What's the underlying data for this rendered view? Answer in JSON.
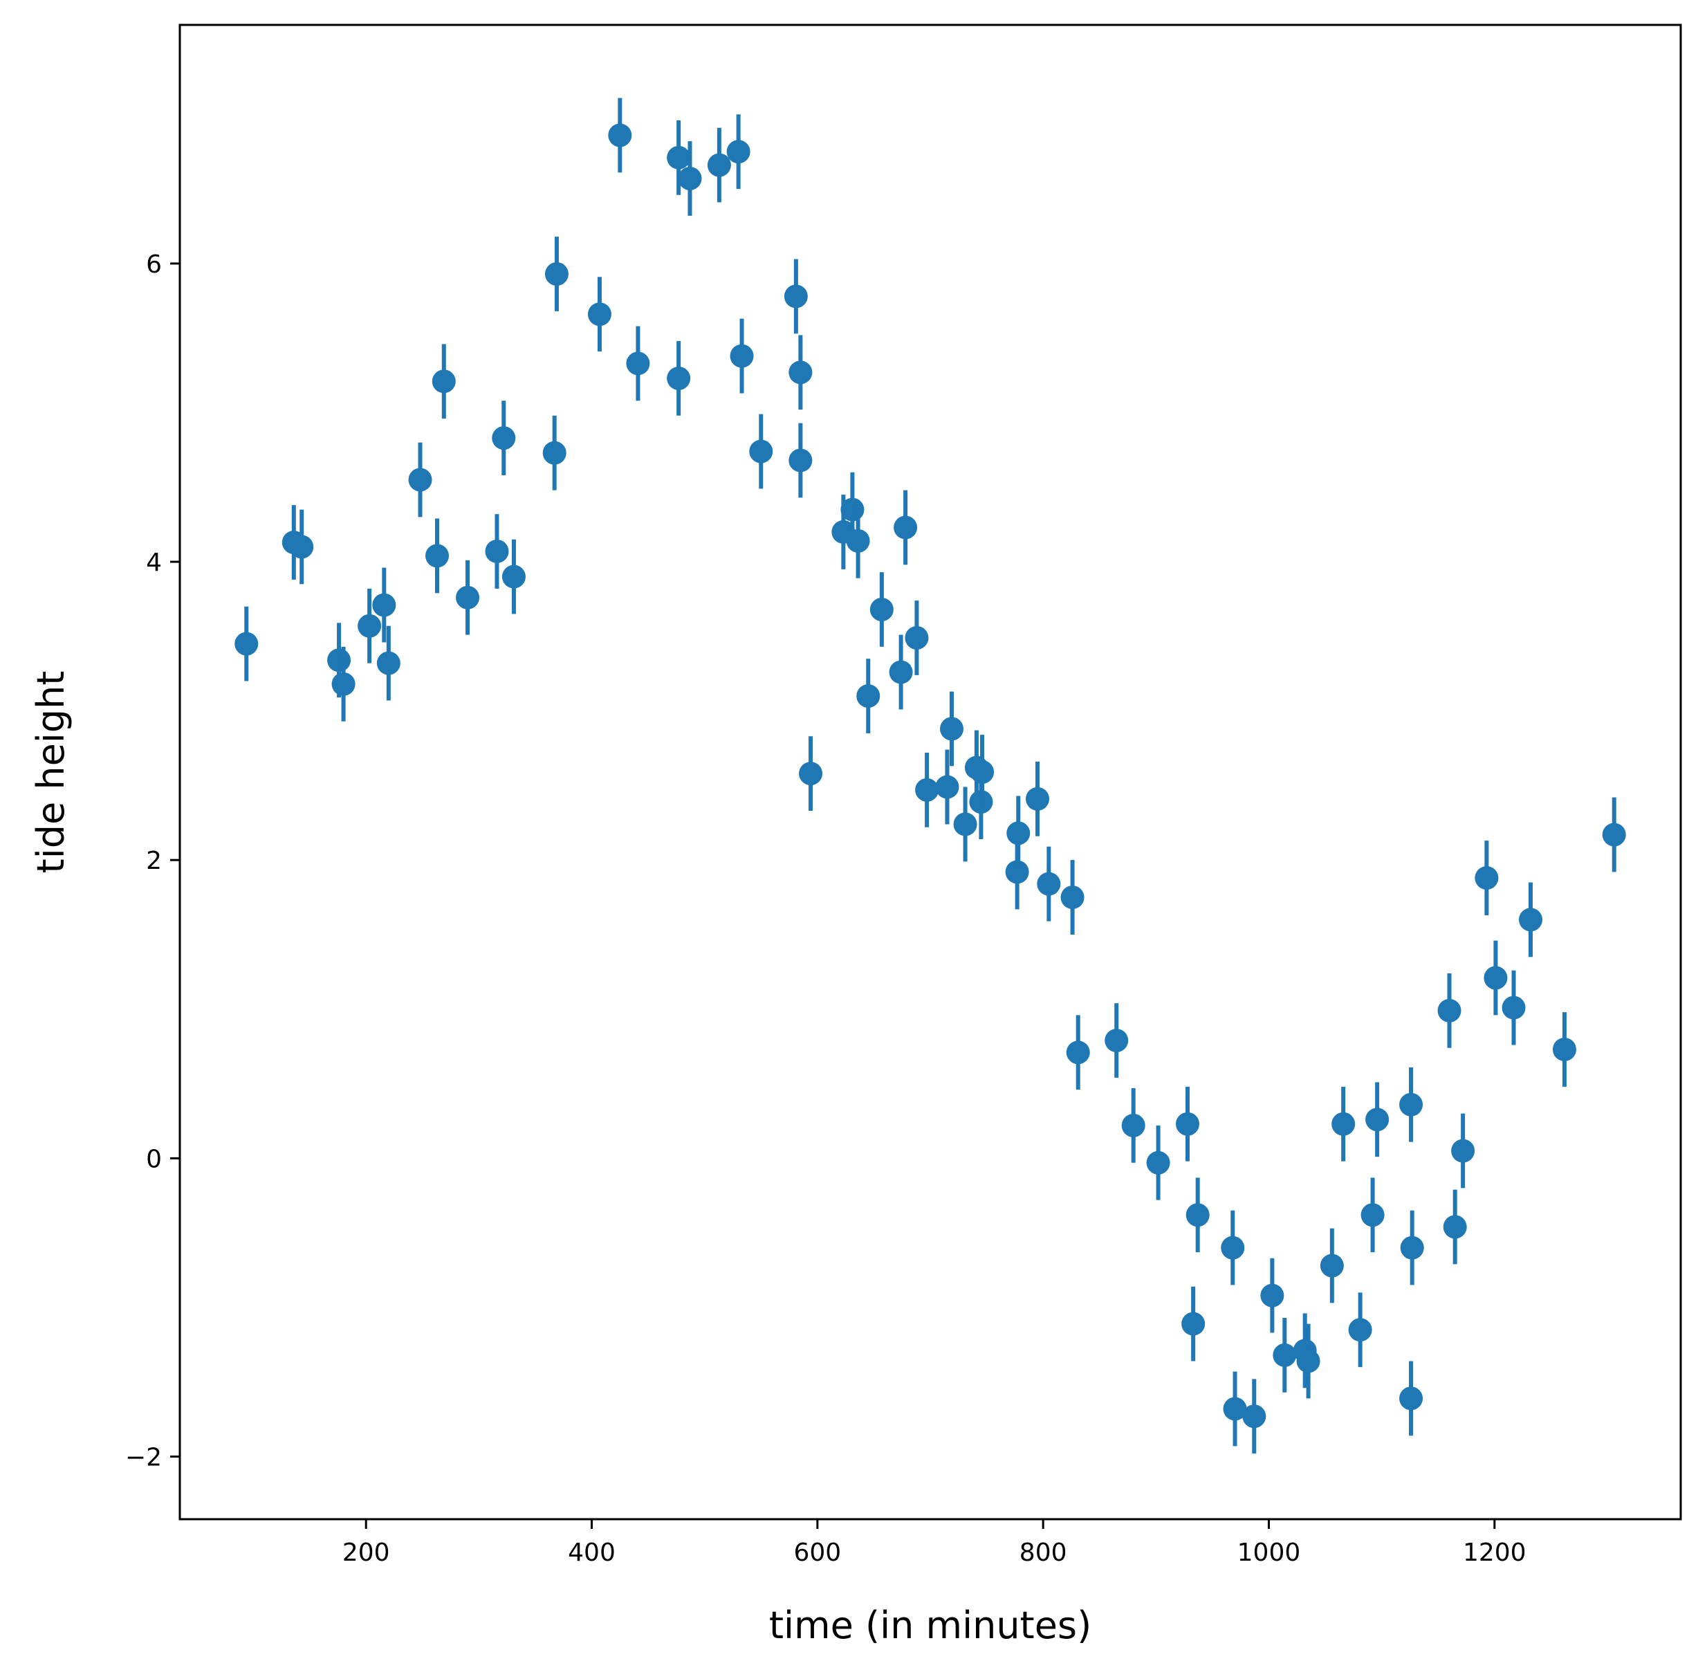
{
  "chart_data": {
    "type": "scatter",
    "title": "",
    "xlabel": "time (in minutes)",
    "ylabel": "tide height",
    "xlim": [
      35,
      1365
    ],
    "ylim": [
      -2.42,
      7.6
    ],
    "x_ticks": [
      200,
      400,
      600,
      800,
      1000,
      1200
    ],
    "y_ticks": [
      -2,
      0,
      2,
      4,
      6
    ],
    "y_tick_labels": [
      "−2",
      "0",
      "2",
      "4",
      "6"
    ],
    "grid": false,
    "legend": "none",
    "marker_color": "#1f77b4",
    "error_bar": 0.25,
    "points": [
      {
        "x": 94,
        "y": 3.45
      },
      {
        "x": 136,
        "y": 4.13
      },
      {
        "x": 143,
        "y": 4.1
      },
      {
        "x": 176,
        "y": 3.34
      },
      {
        "x": 180,
        "y": 3.18
      },
      {
        "x": 203,
        "y": 3.57
      },
      {
        "x": 216,
        "y": 3.71
      },
      {
        "x": 220,
        "y": 3.32
      },
      {
        "x": 248,
        "y": 4.55
      },
      {
        "x": 263,
        "y": 4.04
      },
      {
        "x": 269,
        "y": 5.21
      },
      {
        "x": 290,
        "y": 3.76
      },
      {
        "x": 316,
        "y": 4.07
      },
      {
        "x": 322,
        "y": 4.83
      },
      {
        "x": 331,
        "y": 3.9
      },
      {
        "x": 367,
        "y": 4.73
      },
      {
        "x": 369,
        "y": 5.93
      },
      {
        "x": 407,
        "y": 5.66
      },
      {
        "x": 425,
        "y": 6.86
      },
      {
        "x": 441,
        "y": 5.33
      },
      {
        "x": 477,
        "y": 5.23
      },
      {
        "x": 477,
        "y": 6.71
      },
      {
        "x": 487,
        "y": 6.57
      },
      {
        "x": 513,
        "y": 6.66
      },
      {
        "x": 530,
        "y": 6.75
      },
      {
        "x": 533,
        "y": 5.38
      },
      {
        "x": 550,
        "y": 4.74
      },
      {
        "x": 581,
        "y": 5.78
      },
      {
        "x": 585,
        "y": 5.27
      },
      {
        "x": 585,
        "y": 4.68
      },
      {
        "x": 594,
        "y": 2.58
      },
      {
        "x": 623,
        "y": 4.2
      },
      {
        "x": 631,
        "y": 4.35
      },
      {
        "x": 636,
        "y": 4.14
      },
      {
        "x": 645,
        "y": 3.1
      },
      {
        "x": 657,
        "y": 3.68
      },
      {
        "x": 674,
        "y": 3.26
      },
      {
        "x": 678,
        "y": 4.23
      },
      {
        "x": 688,
        "y": 3.49
      },
      {
        "x": 697,
        "y": 2.47
      },
      {
        "x": 715,
        "y": 2.49
      },
      {
        "x": 719,
        "y": 2.88
      },
      {
        "x": 731,
        "y": 2.24
      },
      {
        "x": 741,
        "y": 2.62
      },
      {
        "x": 745,
        "y": 2.39
      },
      {
        "x": 746,
        "y": 2.59
      },
      {
        "x": 777,
        "y": 1.92
      },
      {
        "x": 778,
        "y": 2.18
      },
      {
        "x": 795,
        "y": 2.41
      },
      {
        "x": 805,
        "y": 1.84
      },
      {
        "x": 826,
        "y": 1.75
      },
      {
        "x": 831,
        "y": 0.71
      },
      {
        "x": 865,
        "y": 0.79
      },
      {
        "x": 880,
        "y": 0.22
      },
      {
        "x": 902,
        "y": -0.03
      },
      {
        "x": 928,
        "y": 0.23
      },
      {
        "x": 933,
        "y": -1.11
      },
      {
        "x": 937,
        "y": -0.38
      },
      {
        "x": 968,
        "y": -0.6
      },
      {
        "x": 970,
        "y": -1.68
      },
      {
        "x": 987,
        "y": -1.73
      },
      {
        "x": 1003,
        "y": -0.92
      },
      {
        "x": 1014,
        "y": -1.32
      },
      {
        "x": 1032,
        "y": -1.29
      },
      {
        "x": 1035,
        "y": -1.36
      },
      {
        "x": 1056,
        "y": -0.72
      },
      {
        "x": 1066,
        "y": 0.23
      },
      {
        "x": 1081,
        "y": -1.15
      },
      {
        "x": 1092,
        "y": -0.38
      },
      {
        "x": 1096,
        "y": 0.26
      },
      {
        "x": 1126,
        "y": 0.36
      },
      {
        "x": 1127,
        "y": -0.6
      },
      {
        "x": 1126,
        "y": -1.61
      },
      {
        "x": 1160,
        "y": 0.99
      },
      {
        "x": 1165,
        "y": -0.46
      },
      {
        "x": 1172,
        "y": 0.05
      },
      {
        "x": 1193,
        "y": 1.88
      },
      {
        "x": 1201,
        "y": 1.21
      },
      {
        "x": 1217,
        "y": 1.01
      },
      {
        "x": 1232,
        "y": 1.6
      },
      {
        "x": 1262,
        "y": 0.73
      },
      {
        "x": 1306,
        "y": 2.17
      }
    ]
  }
}
